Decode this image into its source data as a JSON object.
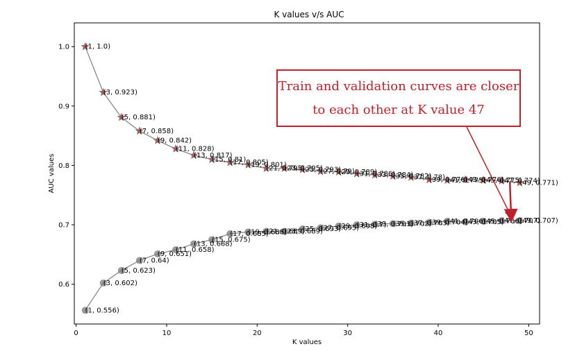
{
  "chart_data": {
    "type": "line",
    "title": "K values v/s AUC",
    "xlabel": "K values",
    "ylabel": "AUC values",
    "xlim": [
      -0.2,
      51.2
    ],
    "ylim": [
      0.533,
      1.04
    ],
    "xticks": [
      0,
      10,
      20,
      30,
      40,
      50
    ],
    "yticks": [
      0.6,
      0.7,
      0.8,
      0.9,
      1.0
    ],
    "ytick_labels": [
      "0.6",
      "0.7",
      "0.8",
      "0.9",
      "1.0"
    ],
    "grid": false,
    "series": [
      {
        "marker": "star",
        "line_color": "#888888",
        "marker_fill": "#c0504d",
        "marker_edge": "#7f7f7f",
        "x": [
          1,
          3,
          5,
          7,
          9,
          11,
          13,
          15,
          17,
          19,
          21,
          23,
          25,
          27,
          29,
          31,
          33,
          35,
          37,
          39,
          41,
          43,
          45,
          47,
          49
        ],
        "y": [
          1.0,
          0.923,
          0.881,
          0.858,
          0.842,
          0.828,
          0.817,
          0.81,
          0.805,
          0.801,
          0.795,
          0.795,
          0.793,
          0.79,
          0.789,
          0.786,
          0.784,
          0.782,
          0.78,
          0.776,
          0.775,
          0.776,
          0.775,
          0.774,
          0.771
        ],
        "labels": [
          "(1, 1.0)",
          "(3, 0.923)",
          "(5, 0.881)",
          "(7, 0.858)",
          "(9, 0.842)",
          "(11, 0.828)",
          "(13, 0.817)",
          "(15, 0.81)",
          "(17, 0.805)",
          "(19, 0.801)",
          "(21, 0.795)",
          "(23, 0.795)",
          "(25, 0.793)",
          "(27, 0.79)",
          "(29, 0.789)",
          "(31, 0.786)",
          "(33, 0.784)",
          "(35, 0.782)",
          "(37, 0.78)",
          "(39, 0.776)",
          "(41, 0.775)",
          "(43, 0.776)",
          "(45, 0.775)",
          "(47, 0.774)",
          "(49, 0.771)"
        ]
      },
      {
        "marker": "circle",
        "line_color": "#888888",
        "marker_fill": "#808080",
        "marker_edge": "#808080",
        "x": [
          1,
          3,
          5,
          7,
          9,
          11,
          13,
          15,
          17,
          19,
          21,
          23,
          25,
          27,
          29,
          31,
          33,
          35,
          37,
          39,
          41,
          43,
          45,
          47,
          49
        ],
        "y": [
          0.556,
          0.602,
          0.623,
          0.64,
          0.651,
          0.658,
          0.668,
          0.675,
          0.685,
          0.688,
          0.689,
          0.689,
          0.693,
          0.695,
          0.698,
          0.7,
          0.701,
          0.702,
          0.703,
          0.704,
          0.706,
          0.705,
          0.706,
          0.707,
          0.707
        ],
        "labels": [
          "(1, 0.556)",
          "(3, 0.602)",
          "(5, 0.623)",
          "(7, 0.64)",
          "(9, 0.651)",
          "(11, 0.658)",
          "(13, 0.668)",
          "(15, 0.675)",
          "(17, 0.685)",
          "(19, 0.688)",
          "(21, 0.689)",
          "(23, 0.689)",
          "(25, 0.693)",
          "(27, 0.695)",
          "(29, 0.698)",
          "(31, 0.7)",
          "(33, 0.701)",
          "(35, 0.702)",
          "(37, 0.703)",
          "(39, 0.704)",
          "(41, 0.706)",
          "(43, 0.705)",
          "(45, 0.706)",
          "(47, 0.707)",
          "(49, 0.707)"
        ]
      }
    ],
    "annotation": {
      "line1": "Train and validation curves are closer",
      "line2": "to each other at K value 47",
      "color": "#c0202a",
      "points_to_x": 48.3
    }
  }
}
